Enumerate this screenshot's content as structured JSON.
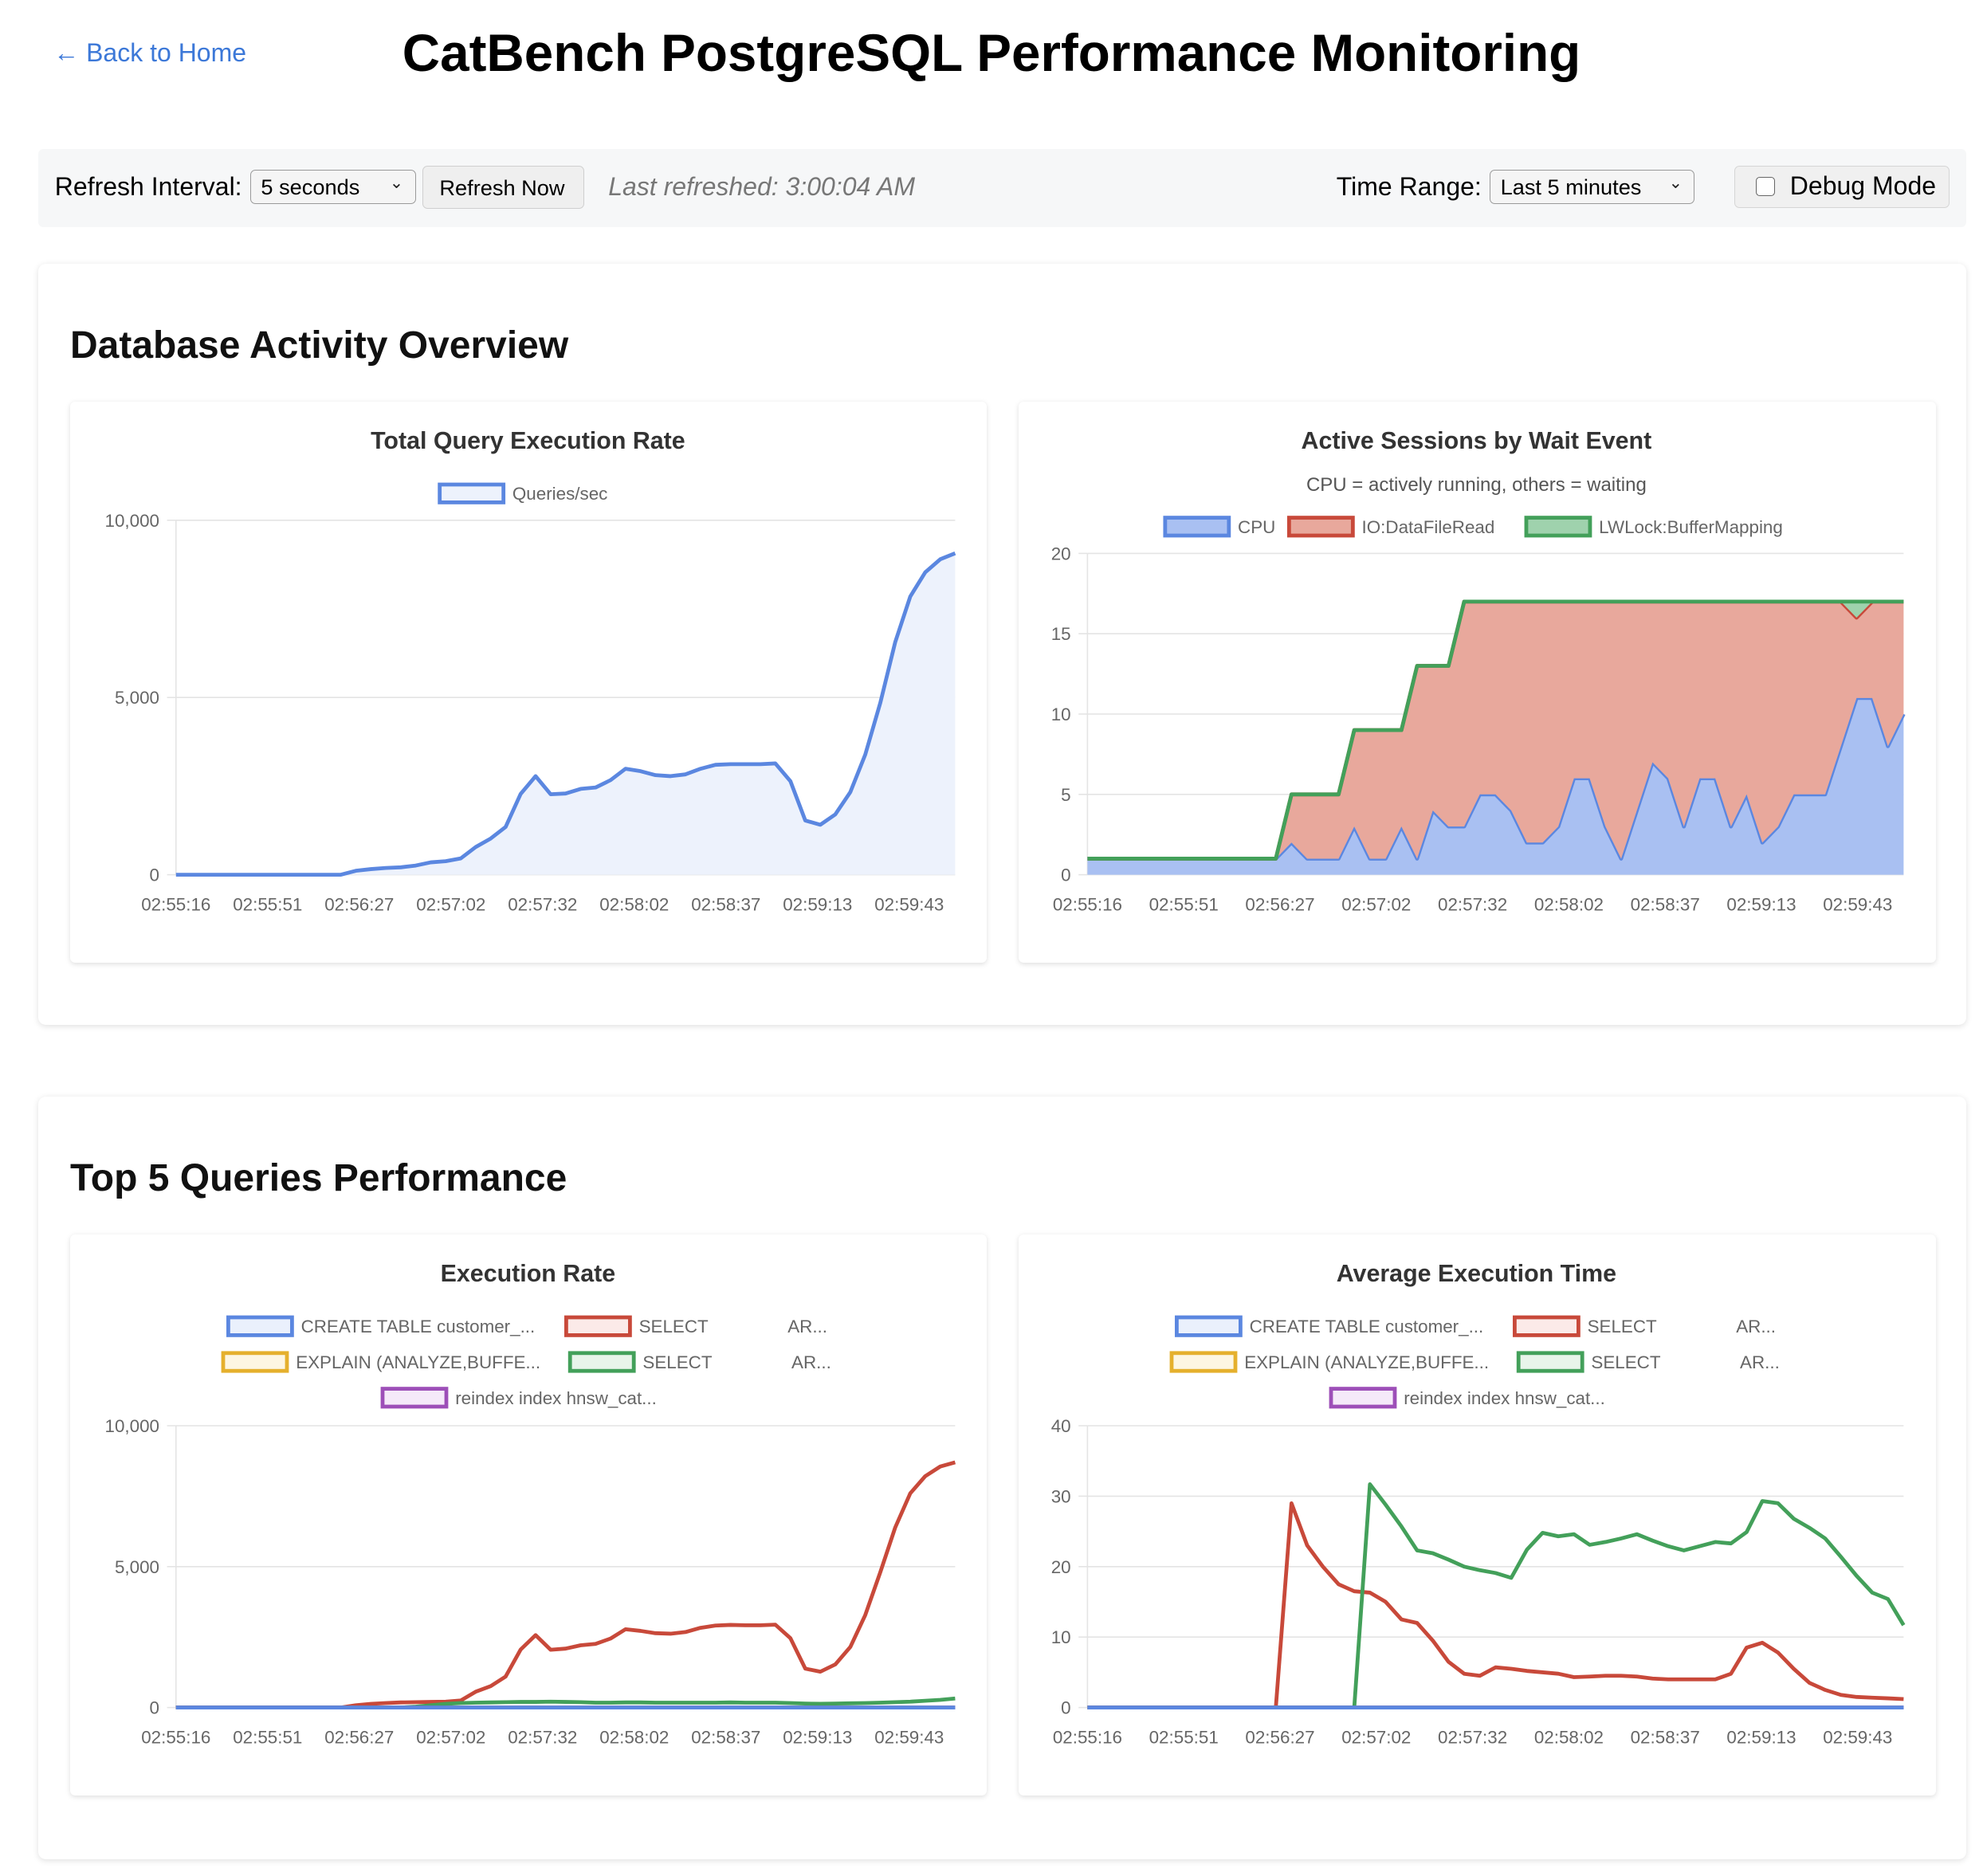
{
  "header": {
    "back_link": "← Back to Home",
    "title": "CatBench PostgreSQL Performance Monitoring"
  },
  "controls": {
    "refresh_interval_label": "Refresh Interval:",
    "refresh_interval_value": "5 seconds",
    "refresh_now_label": "Refresh Now",
    "last_refreshed": "Last refreshed: 3:00:04 AM",
    "time_range_label": "Time Range:",
    "time_range_value": "Last 5 minutes",
    "debug_mode_label": "Debug Mode",
    "debug_mode_checked": false
  },
  "sections": {
    "activity_title": "Database Activity Overview",
    "queries_title": "Top 5 Queries Performance"
  },
  "x_labels": [
    "02:55:16",
    "02:55:51",
    "02:56:27",
    "02:57:02",
    "02:57:32",
    "02:58:02",
    "02:58:37",
    "02:59:13",
    "02:59:43"
  ],
  "chart_data": [
    {
      "id": "total-rate",
      "type": "area",
      "title": "Total Query Execution Rate",
      "subtitle": "",
      "ylim": [
        0,
        10000
      ],
      "yticks": [
        0,
        5000,
        10000
      ],
      "ytick_labels": [
        "0",
        "5,000",
        "10,000"
      ],
      "grid": true,
      "legend": "top",
      "series": [
        {
          "name": "Queries/sec",
          "color": "#5b87e0",
          "fill": "#edf2fc",
          "values": [
            0,
            0,
            0,
            0,
            0,
            0,
            0,
            0,
            0,
            0,
            0,
            0,
            110,
            160,
            190,
            210,
            260,
            350,
            380,
            460,
            780,
            1020,
            1350,
            2280,
            2780,
            2270,
            2290,
            2420,
            2460,
            2670,
            2990,
            2920,
            2810,
            2780,
            2830,
            2990,
            3100,
            3120,
            3120,
            3120,
            3140,
            2640,
            1530,
            1410,
            1700,
            2330,
            3390,
            4850,
            6560,
            7850,
            8530,
            8900,
            9070
          ]
        }
      ]
    },
    {
      "id": "wait-events",
      "type": "area",
      "stacked": true,
      "title": "Active Sessions by Wait Event",
      "subtitle": "CPU = actively running, others = waiting",
      "ylim": [
        0,
        20
      ],
      "yticks": [
        0,
        5,
        10,
        15,
        20
      ],
      "ytick_labels": [
        "0",
        "5",
        "10",
        "15",
        "20"
      ],
      "grid": true,
      "legend": "top",
      "series": [
        {
          "name": "CPU",
          "color": "#5b87e0",
          "fill": "#a9c0f2",
          "values": [
            1,
            1,
            1,
            1,
            1,
            1,
            1,
            1,
            1,
            1,
            1,
            1,
            1,
            2,
            1,
            1,
            1,
            3,
            1,
            1,
            3,
            1,
            4,
            3,
            3,
            5,
            5,
            4,
            2,
            2,
            3,
            6,
            6,
            3,
            1,
            4,
            7,
            6,
            3,
            6,
            6,
            3,
            5,
            2,
            3,
            5,
            5,
            5,
            8,
            11,
            11,
            8,
            10
          ]
        },
        {
          "name": "IO:DataFileRead",
          "color": "#c8493a",
          "fill": "#e8a89c",
          "values": [
            0,
            0,
            0,
            0,
            0,
            0,
            0,
            0,
            0,
            0,
            0,
            0,
            0,
            3,
            4,
            4,
            4,
            6,
            8,
            8,
            6,
            12,
            9,
            10,
            14,
            12,
            12,
            13,
            15,
            15,
            14,
            11,
            11,
            14,
            16,
            13,
            10,
            11,
            14,
            11,
            11,
            14,
            12,
            15,
            14,
            12,
            12,
            12,
            9,
            5,
            6,
            9,
            7
          ]
        },
        {
          "name": "LWLock:BufferMapping",
          "color": "#43a05a",
          "fill": "#9fd2ad",
          "values": [
            0,
            0,
            0,
            0,
            0,
            0,
            0,
            0,
            0,
            0,
            0,
            0,
            0,
            0,
            0,
            0,
            0,
            0,
            0,
            0,
            0,
            0,
            0,
            0,
            0,
            0,
            0,
            0,
            0,
            0,
            0,
            0,
            0,
            0,
            0,
            0,
            0,
            0,
            0,
            0,
            0,
            0,
            0,
            0,
            0,
            0,
            0,
            0,
            0,
            1,
            0,
            0,
            0
          ]
        }
      ]
    },
    {
      "id": "exec-rate",
      "type": "line",
      "title": "Execution Rate",
      "subtitle": "",
      "ylim": [
        0,
        10000
      ],
      "yticks": [
        0,
        5000,
        10000
      ],
      "ytick_labels": [
        "0",
        "5,000",
        "10,000"
      ],
      "grid": true,
      "legend": "top",
      "legend_rows": [
        [
          0,
          1
        ],
        [
          2,
          3
        ],
        [
          4
        ]
      ],
      "series": [
        {
          "name": "CREATE TABLE customer_...",
          "color": "#5b87e0",
          "fill": "#eaf0fc",
          "values": [
            0,
            0,
            0,
            0,
            0,
            0,
            0,
            0,
            0,
            0,
            0,
            0,
            0,
            0,
            0,
            0,
            0,
            0,
            0,
            0,
            0,
            0,
            0,
            0,
            0,
            0,
            0,
            0,
            0,
            0,
            0,
            0,
            0,
            0,
            0,
            0,
            0,
            0,
            0,
            0,
            0,
            0,
            0,
            0,
            0,
            0,
            0,
            0,
            0,
            0,
            0,
            0,
            0
          ]
        },
        {
          "name": "SELECT                AR...",
          "color": "#c8493a",
          "fill": "#fbeae8",
          "values": [
            0,
            0,
            0,
            0,
            0,
            0,
            0,
            0,
            0,
            0,
            0,
            0,
            80,
            130,
            160,
            180,
            190,
            200,
            210,
            250,
            560,
            760,
            1100,
            2060,
            2570,
            2050,
            2090,
            2210,
            2260,
            2450,
            2780,
            2720,
            2640,
            2620,
            2680,
            2830,
            2910,
            2930,
            2920,
            2920,
            2940,
            2460,
            1380,
            1270,
            1530,
            2150,
            3280,
            4800,
            6390,
            7600,
            8210,
            8550,
            8700
          ]
        },
        {
          "name": "EXPLAIN (ANALYZE,BUFFE...",
          "color": "#e5b02d",
          "fill": "#fdf6e2",
          "values": [
            0,
            0,
            0,
            0,
            0,
            0,
            0,
            0,
            0,
            0,
            0,
            0,
            0,
            0,
            0,
            0,
            0,
            0,
            0,
            0,
            0,
            0,
            0,
            0,
            0,
            0,
            0,
            0,
            0,
            0,
            0,
            0,
            0,
            0,
            0,
            0,
            0,
            0,
            0,
            0,
            0,
            0,
            0,
            0,
            0,
            0,
            0,
            0,
            0,
            0,
            0,
            0,
            0
          ]
        },
        {
          "name": "SELECT                AR...",
          "color": "#43a05a",
          "fill": "#e8f4ea",
          "values": [
            0,
            0,
            0,
            0,
            0,
            0,
            0,
            0,
            0,
            0,
            0,
            0,
            0,
            0,
            0,
            0,
            30,
            80,
            130,
            160,
            170,
            180,
            190,
            200,
            200,
            210,
            200,
            190,
            170,
            170,
            180,
            180,
            170,
            170,
            170,
            170,
            170,
            180,
            170,
            170,
            170,
            160,
            140,
            130,
            140,
            150,
            160,
            170,
            190,
            210,
            240,
            270,
            320
          ]
        },
        {
          "name": "reindex index hnsw_cat...",
          "color": "#9d4fb8",
          "fill": "#f5e9f9",
          "values": [
            0,
            0,
            0,
            0,
            0,
            0,
            0,
            0,
            0,
            0,
            0,
            0,
            0,
            0,
            0,
            0,
            0,
            0,
            0,
            0,
            0,
            0,
            0,
            0,
            0,
            0,
            0,
            0,
            0,
            0,
            0,
            0,
            0,
            0,
            0,
            0,
            0,
            0,
            0,
            0,
            0,
            0,
            0,
            0,
            0,
            0,
            0,
            0,
            0,
            0,
            0,
            0,
            0
          ]
        }
      ]
    },
    {
      "id": "avg-time",
      "type": "line",
      "title": "Average Execution Time",
      "subtitle": "",
      "ylim": [
        0,
        40
      ],
      "yticks": [
        0,
        10,
        20,
        30,
        40
      ],
      "ytick_labels": [
        "0",
        "10",
        "20",
        "30",
        "40"
      ],
      "grid": true,
      "legend": "top",
      "legend_rows": [
        [
          0,
          1
        ],
        [
          2,
          3
        ],
        [
          4
        ]
      ],
      "series": [
        {
          "name": "CREATE TABLE customer_...",
          "color": "#5b87e0",
          "fill": "#eaf0fc",
          "values": [
            0,
            0,
            0,
            0,
            0,
            0,
            0,
            0,
            0,
            0,
            0,
            0,
            0,
            0,
            0,
            0,
            0,
            0,
            0,
            0,
            0,
            0,
            0,
            0,
            0,
            0,
            0,
            0,
            0,
            0,
            0,
            0,
            0,
            0,
            0,
            0,
            0,
            0,
            0,
            0,
            0,
            0,
            0,
            0,
            0,
            0,
            0,
            0,
            0,
            0,
            0,
            0,
            0
          ]
        },
        {
          "name": "SELECT                AR...",
          "color": "#c8493a",
          "fill": "#fbeae8",
          "values": [
            0,
            0,
            0,
            0,
            0,
            0,
            0,
            0,
            0,
            0,
            0,
            0,
            0,
            29,
            23,
            20,
            17.5,
            16.5,
            16.3,
            15,
            12.5,
            12,
            9.5,
            6.5,
            4.8,
            4.5,
            5.7,
            5.5,
            5.2,
            5,
            4.8,
            4.3,
            4.4,
            4.5,
            4.5,
            4.4,
            4.1,
            4,
            4,
            4,
            4,
            4.8,
            8.5,
            9.2,
            7.8,
            5.5,
            3.5,
            2.5,
            1.8,
            1.5,
            1.4,
            1.3,
            1.2
          ]
        },
        {
          "name": "EXPLAIN (ANALYZE,BUFFE...",
          "color": "#e5b02d",
          "fill": "#fdf6e2",
          "values": [
            0,
            0,
            0,
            0,
            0,
            0,
            0,
            0,
            0,
            0,
            0,
            0,
            0,
            0,
            0,
            0,
            0,
            0,
            0,
            0,
            0,
            0,
            0,
            0,
            0,
            0,
            0,
            0,
            0,
            0,
            0,
            0,
            0,
            0,
            0,
            0,
            0,
            0,
            0,
            0,
            0,
            0,
            0,
            0,
            0,
            0,
            0,
            0,
            0,
            0,
            0,
            0,
            0
          ]
        },
        {
          "name": "SELECT                AR...",
          "color": "#43a05a",
          "fill": "#e8f4ea",
          "values": [
            0,
            0,
            0,
            0,
            0,
            0,
            0,
            0,
            0,
            0,
            0,
            0,
            0,
            0,
            0,
            0,
            0,
            0,
            31.7,
            28.8,
            25.7,
            22.3,
            21.9,
            21,
            20,
            19.5,
            19.1,
            18.4,
            22.4,
            24.8,
            24.3,
            24.6,
            23.1,
            23.5,
            24,
            24.6,
            23.7,
            22.9,
            22.3,
            22.9,
            23.5,
            23.3,
            24.9,
            29.3,
            29,
            26.8,
            25.5,
            24,
            21.4,
            18.7,
            16.3,
            15.4,
            11.7
          ]
        },
        {
          "name": "reindex index hnsw_cat...",
          "color": "#9d4fb8",
          "fill": "#f5e9f9",
          "values": [
            0,
            0,
            0,
            0,
            0,
            0,
            0,
            0,
            0,
            0,
            0,
            0,
            0,
            0,
            0,
            0,
            0,
            0,
            0,
            0,
            0,
            0,
            0,
            0,
            0,
            0,
            0,
            0,
            0,
            0,
            0,
            0,
            0,
            0,
            0,
            0,
            0,
            0,
            0,
            0,
            0,
            0,
            0,
            0,
            0,
            0,
            0,
            0,
            0,
            0,
            0,
            0,
            0
          ]
        }
      ]
    }
  ]
}
